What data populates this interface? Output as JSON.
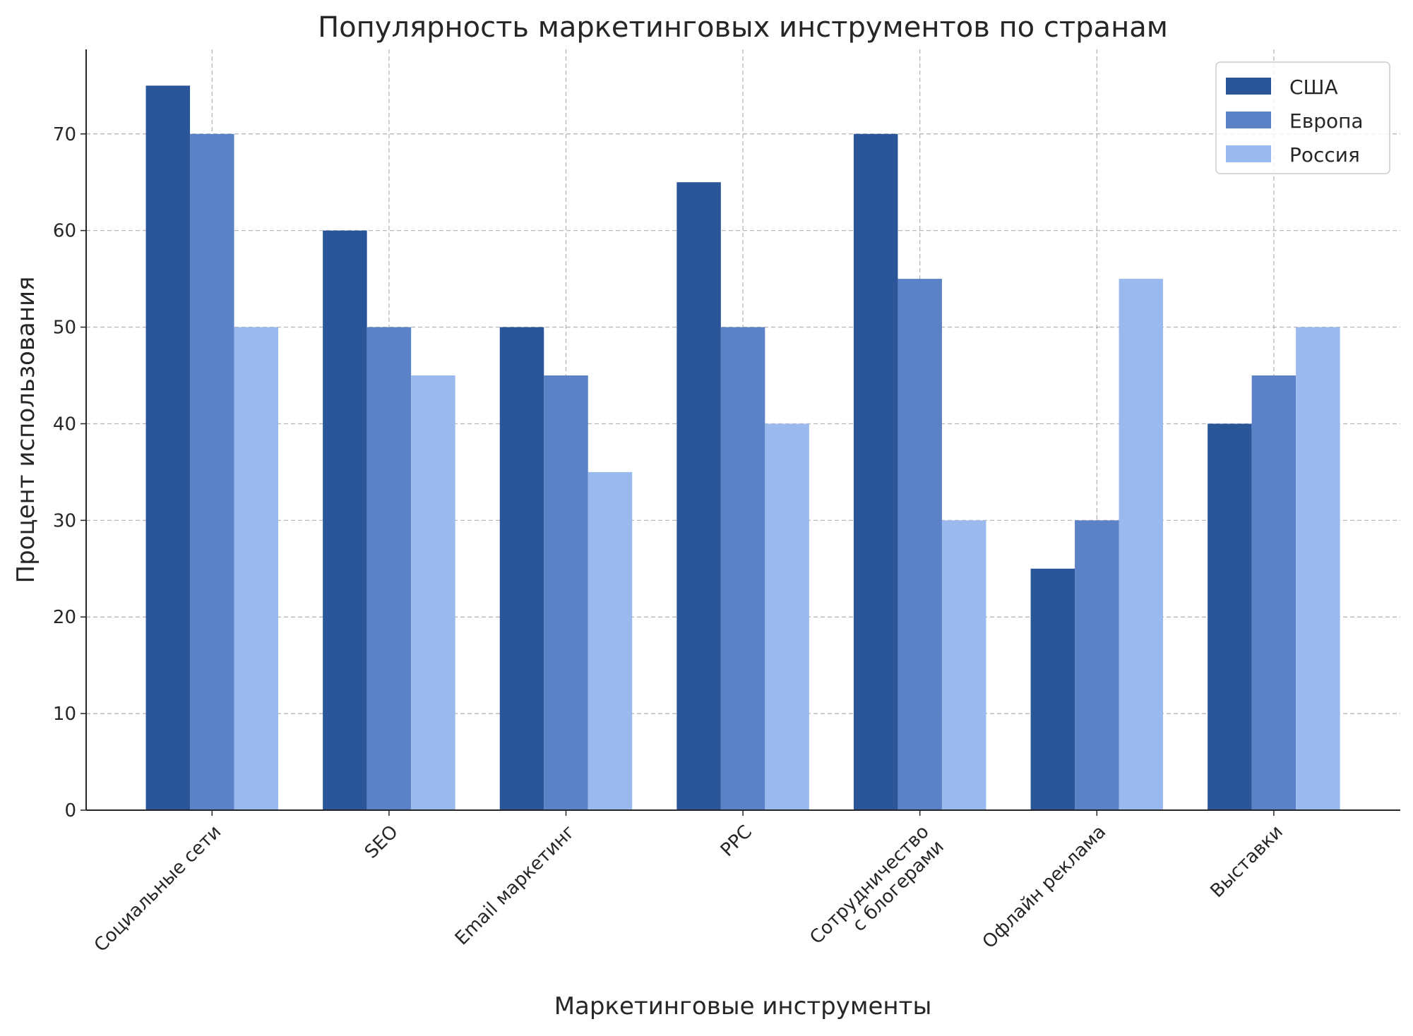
{
  "chart_data": {
    "type": "bar",
    "title": "Популярность маркетинговых инструментов по странам",
    "xlabel": "Маркетинговые инструменты",
    "ylabel": "Процент использования",
    "categories": [
      [
        "Социальные сети"
      ],
      [
        "SEO"
      ],
      [
        "Email маркетинг"
      ],
      [
        "PPC"
      ],
      [
        "Сотрудничество",
        "с блогерами"
      ],
      [
        "Офлайн реклама"
      ],
      [
        "Выставки"
      ]
    ],
    "series": [
      {
        "name": "США",
        "color": "#2a5599",
        "values": [
          75,
          60,
          50,
          65,
          70,
          25,
          40
        ]
      },
      {
        "name": "Европа",
        "color": "#5b82c6",
        "values": [
          70,
          50,
          45,
          50,
          55,
          30,
          45
        ]
      },
      {
        "name": "Россия",
        "color": "#9ab9ee",
        "values": [
          50,
          45,
          35,
          40,
          30,
          55,
          50
        ]
      }
    ],
    "yticks": [
      0,
      10,
      20,
      30,
      40,
      50,
      60,
      70
    ],
    "ylim": [
      0,
      78.75
    ],
    "grid": true,
    "legend": "top-right"
  }
}
